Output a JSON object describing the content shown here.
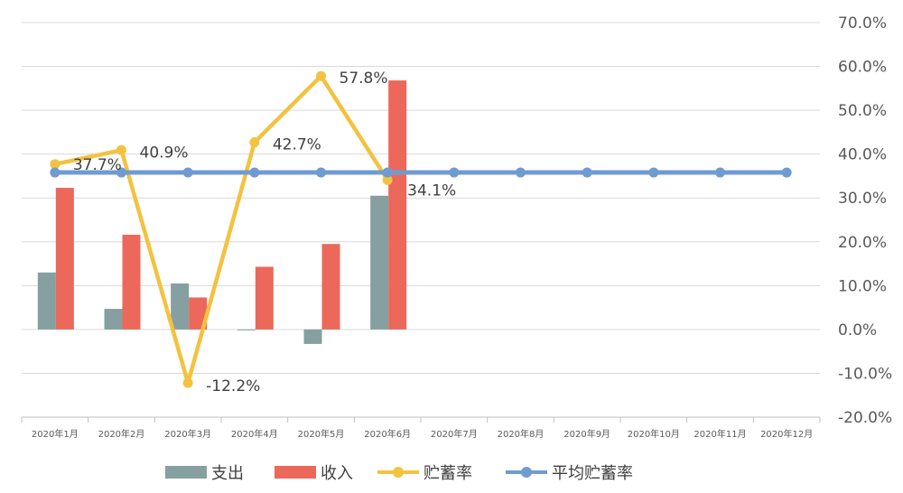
{
  "chart_data": {
    "type": "bar+line",
    "categories": [
      "2020年1月",
      "2020年2月",
      "2020年3月",
      "2020年4月",
      "2020年5月",
      "2020年6月",
      "2020年7月",
      "2020年8月",
      "2020年9月",
      "2020年10月",
      "2020年11月",
      "2020年12月"
    ],
    "bar_series": [
      {
        "name": "支出",
        "color": "#869fa0",
        "values": [
          13,
          4.7,
          10.5,
          -0.2,
          -3.3,
          30.5,
          null,
          null,
          null,
          null,
          null,
          null
        ]
      },
      {
        "name": "收入",
        "color": "#eb685a",
        "values": [
          32.3,
          21.6,
          7.3,
          14.3,
          19.5,
          56.8,
          null,
          null,
          null,
          null,
          null,
          null
        ]
      }
    ],
    "line_series": [
      {
        "name": "贮蓄率",
        "color": "#f3c240",
        "values": [
          37.7,
          40.9,
          -12.2,
          42.7,
          57.8,
          34.1,
          null,
          null,
          null,
          null,
          null,
          null
        ],
        "labels": [
          "37.7%",
          "40.9%",
          "-12.2%",
          "42.7%",
          "57.8%",
          "34.1%"
        ]
      },
      {
        "name": "平均贮蓄率",
        "color": "#6f9bd1",
        "values": [
          35.8,
          35.8,
          35.8,
          35.8,
          35.8,
          35.8,
          35.8,
          35.8,
          35.8,
          35.8,
          35.8,
          35.8
        ]
      }
    ],
    "y_axis": {
      "position": "right",
      "ylim": [
        -20,
        70
      ],
      "step": 10,
      "tick_labels": [
        "-20.0%",
        "-10.0%",
        "0.0%",
        "10.0%",
        "20.0%",
        "30.0%",
        "40.0%",
        "50.0%",
        "60.0%",
        "70.0%"
      ]
    },
    "grid": true,
    "legend": {
      "position": "bottom",
      "entries": [
        "支出",
        "收入",
        "贮蓄率",
        "平均贮蓄率"
      ]
    }
  }
}
